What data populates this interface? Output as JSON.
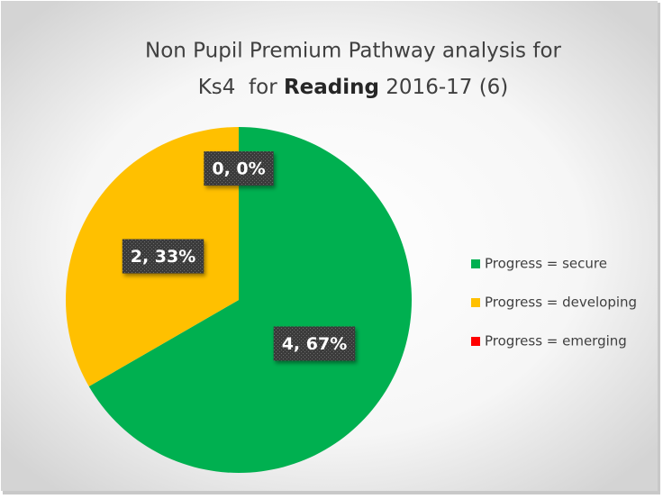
{
  "chart_data": {
    "type": "pie",
    "title": [
      "Non Pupil Premium Pathway analysis for",
      "Ks4  for ",
      "Reading",
      " 2016-17 (6)"
    ],
    "categories": [
      "Progress =  secure",
      "Progress = developing",
      "Progress = emerging"
    ],
    "values": [
      4,
      2,
      0
    ],
    "value_labels": [
      "4, 67%",
      "2, 33%",
      "0, 0%"
    ],
    "colors": [
      "#00b050",
      "#ffc000",
      "#ff0000"
    ],
    "legend": "right"
  }
}
